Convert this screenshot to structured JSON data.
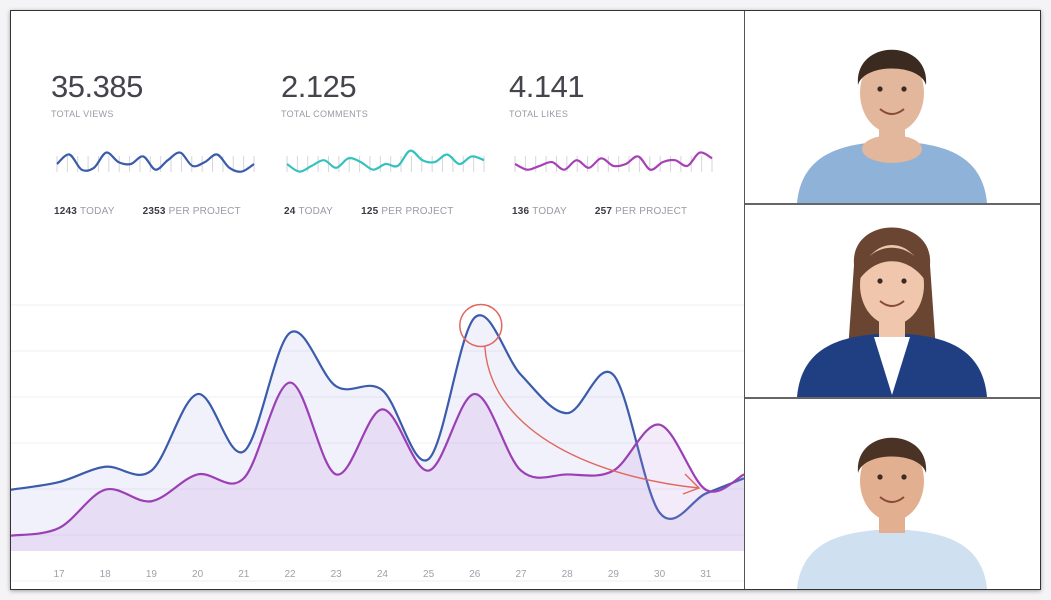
{
  "stats": [
    {
      "value": "35.385",
      "label": "TOTAL VIEWS",
      "today": "1243",
      "today_label": "TODAY",
      "per": "2353",
      "per_label": "PER PROJECT",
      "color": "#3b5bab",
      "spark": [
        0.5,
        0.75,
        0.35,
        0.4,
        0.8,
        0.55,
        0.5,
        0.7,
        0.35,
        0.6,
        0.8,
        0.45,
        0.55,
        0.75,
        0.4,
        0.3,
        0.5
      ]
    },
    {
      "value": "2.125",
      "label": "TOTAL COMMENTS",
      "today": "24",
      "today_label": "TODAY",
      "per": "125",
      "per_label": "PER PROJECT",
      "color": "#33c2bd",
      "spark": [
        0.5,
        0.3,
        0.45,
        0.6,
        0.4,
        0.65,
        0.55,
        0.35,
        0.5,
        0.45,
        0.85,
        0.6,
        0.55,
        0.75,
        0.5,
        0.7,
        0.6
      ]
    },
    {
      "value": "4.141",
      "label": "TOTAL LIKES",
      "today": "136",
      "today_label": "TODAY",
      "per": "257",
      "per_label": "PER PROJECT",
      "color": "#a73fb5",
      "spark": [
        0.5,
        0.35,
        0.45,
        0.55,
        0.35,
        0.6,
        0.4,
        0.65,
        0.45,
        0.5,
        0.7,
        0.35,
        0.55,
        0.6,
        0.45,
        0.8,
        0.65
      ]
    }
  ],
  "chart_data": {
    "type": "area",
    "categories": [
      "17",
      "18",
      "19",
      "20",
      "21",
      "22",
      "23",
      "24",
      "25",
      "26",
      "27",
      "28",
      "29",
      "30",
      "31"
    ],
    "series": [
      {
        "values": [
          1.8,
          2.2,
          2.1,
          4.1,
          2.6,
          5.7,
          4.3,
          4.2,
          2.4,
          6.1,
          4.6,
          3.6,
          4.6,
          1.0,
          1.5
        ],
        "color": "#3b5bab"
      },
      {
        "values": [
          0.6,
          1.6,
          1.3,
          2.0,
          1.9,
          4.4,
          2.0,
          3.7,
          2.1,
          4.1,
          2.1,
          2.0,
          2.1,
          3.3,
          1.6
        ],
        "color": "#9b3fb5"
      }
    ],
    "ylim": [
      0,
      7
    ],
    "grid": true,
    "highlight": {
      "category": "26",
      "color": "#e0685f"
    }
  },
  "participants": [
    {
      "name": "man-blue-shirt",
      "bg": "#ffffff",
      "shirt": "#8fb2d8",
      "hair": "#3b2a20",
      "skin": "#e3b79b"
    },
    {
      "name": "woman-blue-blazer",
      "bg": "#ffffff",
      "shirt": "#1f3f82",
      "hair": "#6a4632",
      "skin": "#f0c7ac"
    },
    {
      "name": "man-light-shirt",
      "bg": "#ffffff",
      "shirt": "#cfe0f0",
      "hair": "#4a3325",
      "skin": "#e2b090"
    }
  ]
}
